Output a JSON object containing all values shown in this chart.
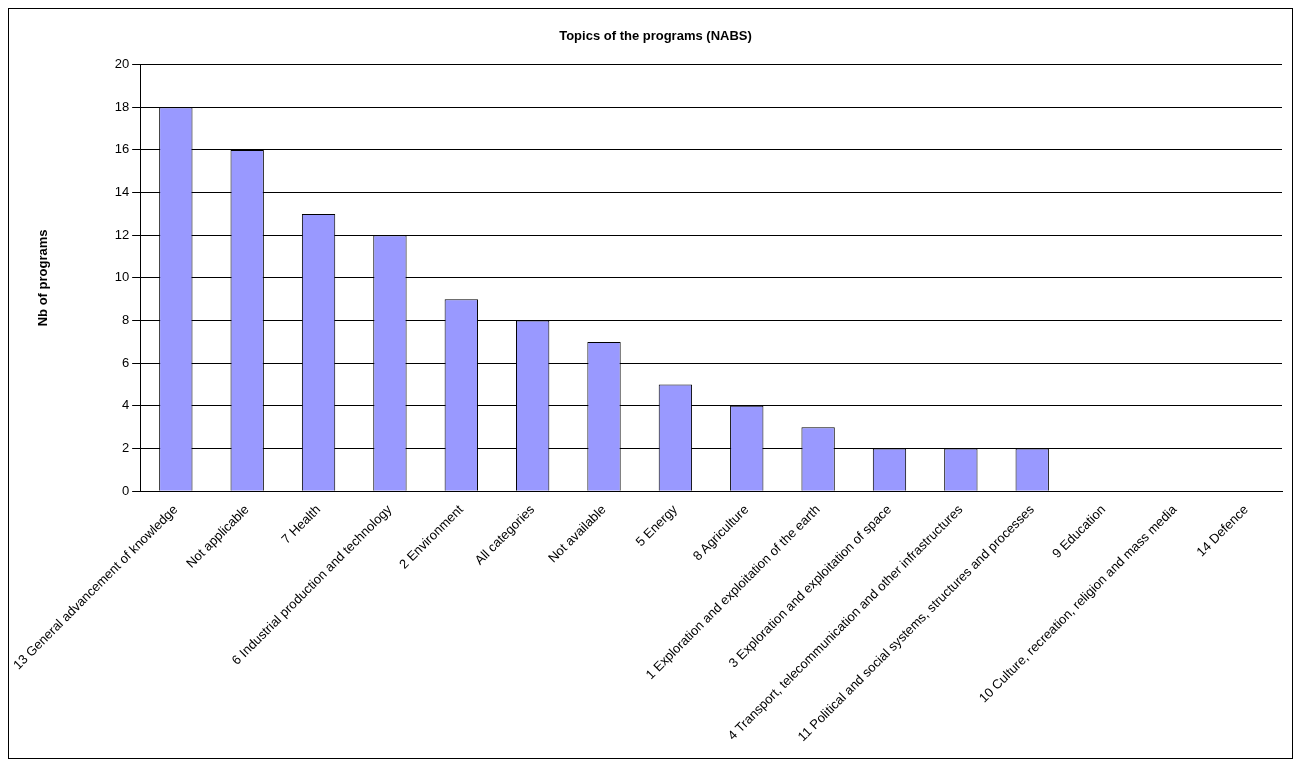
{
  "chart_data": {
    "type": "bar",
    "title": "Topics of the programs (NABS)",
    "ylabel": "Nb of programs",
    "categories": [
      "13 General advancement of knowledge",
      "Not applicable",
      "7 Health",
      "6 Industrial production and technology",
      "2 Environment",
      "All categories",
      "Not available",
      "5 Energy",
      "8 Agriculture",
      "1 Exploration and exploitation of the earth",
      "3 Exploration and exploitation of space",
      "4 Transport, telecommunication and other infrastructures",
      "11 Political and social systems, structures and processes",
      "9 Education",
      "10 Culture, recreation, religion and mass media",
      "14 Defence"
    ],
    "values": [
      18,
      16,
      13,
      12,
      9,
      8,
      7,
      5,
      4,
      3,
      2,
      2,
      2,
      0,
      0,
      0
    ],
    "color": "#9999ff",
    "ylim": [
      0,
      20
    ],
    "yticks": [
      0,
      2,
      4,
      6,
      8,
      10,
      12,
      14,
      16,
      18,
      20
    ],
    "grid": "y",
    "legend": false
  }
}
